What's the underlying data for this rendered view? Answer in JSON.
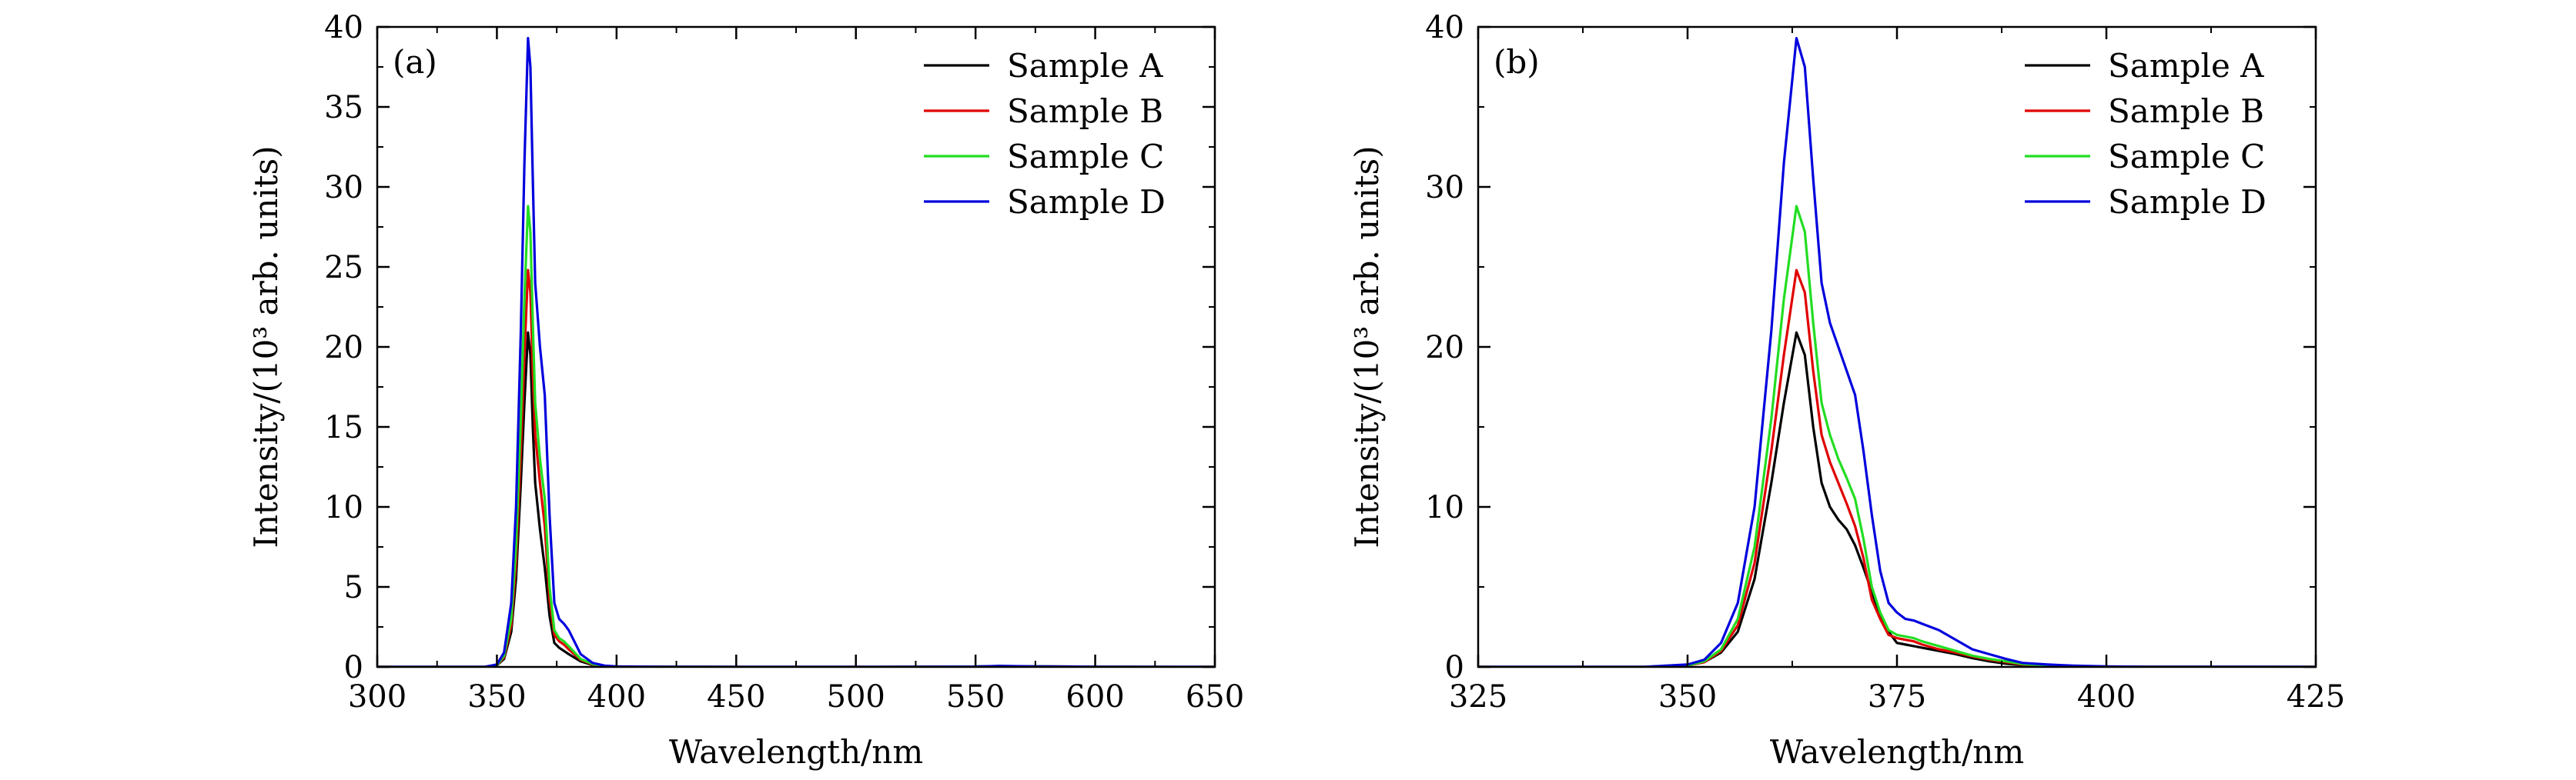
{
  "chart_data": [
    {
      "type": "line",
      "panel_label": "(a)",
      "xlabel": "Wavelength/nm",
      "ylabel": "Intensity/(10³ arb. units)",
      "xlim": [
        300,
        650
      ],
      "ylim": [
        0,
        40
      ],
      "xticks": [
        300,
        350,
        400,
        450,
        500,
        550,
        600,
        650
      ],
      "yticks": [
        0,
        5,
        10,
        15,
        20,
        25,
        30,
        35,
        40
      ],
      "legend_position": "top-right",
      "grid": false,
      "series": [
        {
          "name": "Sample A",
          "color": "#000000",
          "x": [
            300,
            340,
            345,
            350,
            353,
            356,
            358,
            360,
            361.5,
            363,
            364,
            365,
            366,
            368,
            370,
            372,
            374,
            376,
            378,
            380,
            385,
            390,
            395,
            400,
            420,
            450,
            500,
            550,
            560,
            575,
            600,
            650
          ],
          "y": [
            0,
            0,
            0.01,
            0.1,
            0.5,
            2.2,
            5.5,
            11.5,
            16.5,
            20.9,
            19.5,
            15.0,
            11.5,
            8.6,
            6.2,
            3.2,
            1.5,
            1.2,
            1.0,
            0.8,
            0.35,
            0.12,
            0.04,
            0.02,
            0.01,
            0,
            0,
            0.02,
            0.05,
            0.03,
            0.01,
            0
          ]
        },
        {
          "name": "Sample B",
          "color": "#e00000",
          "x": [
            300,
            340,
            345,
            350,
            353,
            356,
            358,
            360,
            361.5,
            363,
            364,
            365,
            366,
            368,
            370,
            372,
            374,
            376,
            378,
            380,
            385,
            390,
            395,
            400,
            420,
            450,
            500,
            550,
            560,
            575,
            600,
            650
          ],
          "y": [
            0,
            0,
            0.01,
            0.1,
            0.6,
            2.6,
            6.5,
            13.5,
            19.5,
            24.8,
            23.4,
            18.5,
            14.5,
            11.5,
            8.8,
            4.2,
            2.0,
            1.6,
            1.4,
            1.1,
            0.45,
            0.15,
            0.05,
            0.02,
            0.01,
            0,
            0,
            0.02,
            0.05,
            0.03,
            0.01,
            0
          ]
        },
        {
          "name": "Sample C",
          "color": "#22dd22",
          "x": [
            300,
            340,
            345,
            350,
            353,
            356,
            358,
            360,
            361.5,
            363,
            364,
            365,
            366,
            368,
            370,
            372,
            374,
            376,
            378,
            380,
            385,
            390,
            395,
            400,
            420,
            450,
            500,
            550,
            560,
            575,
            600,
            650
          ],
          "y": [
            0,
            0,
            0.01,
            0.1,
            0.7,
            3.0,
            7.5,
            15.5,
            23.0,
            28.8,
            27.2,
            21.5,
            16.5,
            13.0,
            10.5,
            5.0,
            2.3,
            1.8,
            1.6,
            1.3,
            0.5,
            0.18,
            0.06,
            0.02,
            0.01,
            0,
            0,
            0.02,
            0.05,
            0.03,
            0.01,
            0
          ]
        },
        {
          "name": "Sample D",
          "color": "#0000dd",
          "x": [
            300,
            340,
            345,
            350,
            353,
            356,
            358,
            360,
            361.5,
            363,
            364,
            365,
            366,
            368,
            370,
            372,
            374,
            376,
            378,
            380,
            385,
            390,
            395,
            400,
            420,
            450,
            500,
            550,
            560,
            575,
            600,
            650
          ],
          "y": [
            0,
            0,
            0.01,
            0.15,
            0.9,
            4.0,
            10.0,
            21.0,
            31.5,
            39.3,
            37.5,
            30.5,
            24.0,
            20.0,
            17.0,
            9.5,
            4.0,
            3.0,
            2.7,
            2.3,
            0.8,
            0.25,
            0.08,
            0.03,
            0.01,
            0,
            0,
            0.02,
            0.06,
            0.03,
            0.01,
            0
          ]
        }
      ]
    },
    {
      "type": "line",
      "panel_label": "(b)",
      "xlabel": "Wavelength/nm",
      "ylabel": "Intensity/(10³ arb. units)",
      "xlim": [
        325,
        425
      ],
      "ylim": [
        0,
        40
      ],
      "xticks": [
        325,
        350,
        375,
        400,
        425
      ],
      "yticks": [
        0,
        10,
        20,
        30,
        40
      ],
      "legend_position": "top-right",
      "grid": false,
      "series": [
        {
          "name": "Sample A",
          "color": "#000000",
          "x": [
            325,
            340,
            345,
            350,
            352,
            354,
            356,
            358,
            360,
            361.5,
            363,
            364,
            365,
            366,
            367,
            368,
            369,
            370,
            371,
            372,
            373,
            374,
            375,
            376,
            377,
            378,
            380,
            382,
            384,
            386,
            388,
            390,
            393,
            396,
            400,
            405,
            410,
            425
          ],
          "y": [
            0,
            0,
            0.01,
            0.1,
            0.3,
            0.9,
            2.2,
            5.5,
            11.5,
            16.5,
            20.9,
            19.5,
            15.0,
            11.5,
            10.0,
            9.2,
            8.6,
            7.6,
            6.2,
            4.7,
            3.2,
            2.2,
            1.5,
            1.4,
            1.3,
            1.2,
            1.0,
            0.8,
            0.55,
            0.35,
            0.2,
            0.12,
            0.07,
            0.04,
            0.02,
            0.01,
            0.01,
            0
          ]
        },
        {
          "name": "Sample B",
          "color": "#e00000",
          "x": [
            325,
            340,
            345,
            350,
            352,
            354,
            356,
            358,
            360,
            361.5,
            363,
            364,
            365,
            366,
            367,
            368,
            369,
            370,
            371,
            372,
            373,
            374,
            375,
            376,
            377,
            378,
            380,
            382,
            384,
            386,
            388,
            390,
            393,
            396,
            400,
            405,
            410,
            425
          ],
          "y": [
            0,
            0,
            0.01,
            0.1,
            0.3,
            1.0,
            2.6,
            6.5,
            13.5,
            19.5,
            24.8,
            23.4,
            18.5,
            14.5,
            12.8,
            11.5,
            10.2,
            8.8,
            6.8,
            4.2,
            3.0,
            2.0,
            1.8,
            1.7,
            1.6,
            1.4,
            1.1,
            0.9,
            0.65,
            0.45,
            0.3,
            0.15,
            0.09,
            0.05,
            0.02,
            0.01,
            0.01,
            0
          ]
        },
        {
          "name": "Sample C",
          "color": "#22dd22",
          "x": [
            325,
            340,
            345,
            350,
            352,
            354,
            356,
            358,
            360,
            361.5,
            363,
            364,
            365,
            366,
            367,
            368,
            369,
            370,
            371,
            372,
            373,
            374,
            375,
            376,
            377,
            378,
            380,
            382,
            384,
            386,
            388,
            390,
            393,
            396,
            400,
            405,
            410,
            425
          ],
          "y": [
            0,
            0,
            0.01,
            0.1,
            0.35,
            1.1,
            3.0,
            7.5,
            15.5,
            23.0,
            28.8,
            27.2,
            21.5,
            16.5,
            14.5,
            13.0,
            11.8,
            10.5,
            8.0,
            5.0,
            3.4,
            2.3,
            2.0,
            1.9,
            1.8,
            1.6,
            1.3,
            1.0,
            0.7,
            0.5,
            0.35,
            0.18,
            0.1,
            0.06,
            0.02,
            0.01,
            0.01,
            0
          ]
        },
        {
          "name": "Sample D",
          "color": "#0000dd",
          "x": [
            325,
            340,
            345,
            350,
            352,
            354,
            356,
            358,
            360,
            361.5,
            363,
            364,
            365,
            366,
            367,
            368,
            369,
            370,
            371,
            372,
            373,
            374,
            375,
            376,
            377,
            378,
            380,
            382,
            384,
            386,
            388,
            390,
            393,
            396,
            400,
            405,
            410,
            425
          ],
          "y": [
            0,
            0,
            0.01,
            0.15,
            0.45,
            1.5,
            4.0,
            10.0,
            21.0,
            31.5,
            39.3,
            37.5,
            30.5,
            24.0,
            21.5,
            20.0,
            18.5,
            17.0,
            13.5,
            9.5,
            6.0,
            4.0,
            3.4,
            3.0,
            2.9,
            2.7,
            2.3,
            1.7,
            1.1,
            0.8,
            0.5,
            0.25,
            0.15,
            0.08,
            0.03,
            0.01,
            0.01,
            0
          ]
        }
      ]
    }
  ]
}
